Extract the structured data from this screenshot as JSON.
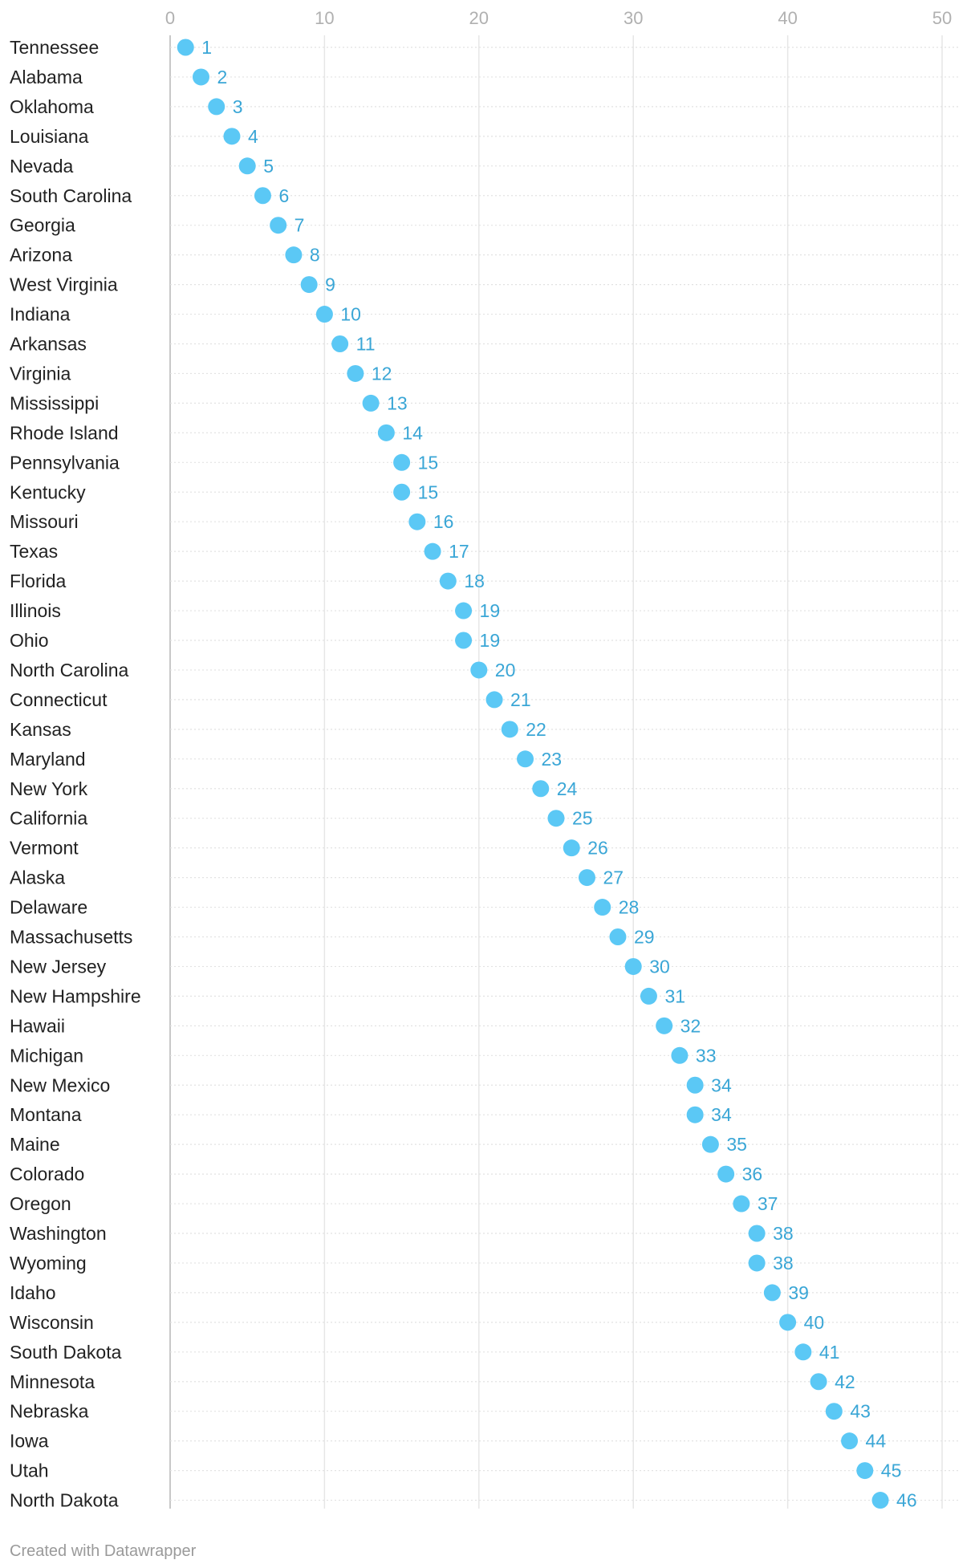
{
  "chart_data": {
    "type": "scatter",
    "orientation": "dot-plot-horizontal",
    "xlim": [
      0,
      50
    ],
    "x_ticks": [
      0,
      10,
      20,
      30,
      40,
      50
    ],
    "x_axis_position": "top",
    "grid": true,
    "dot_color": "#5bc8f5",
    "label_color": "#3aa6d6",
    "categories": [
      "Tennessee",
      "Alabama",
      "Oklahoma",
      "Louisiana",
      "Nevada",
      "South Carolina",
      "Georgia",
      "Arizona",
      "West Virginia",
      "Indiana",
      "Arkansas",
      "Virginia",
      "Mississippi",
      "Rhode Island",
      "Pennsylvania",
      "Kentucky",
      "Missouri",
      "Texas",
      "Florida",
      "Illinois",
      "Ohio",
      "North Carolina",
      "Connecticut",
      "Kansas",
      "Maryland",
      "New York",
      "California",
      "Vermont",
      "Alaska",
      "Delaware",
      "Massachusetts",
      "New Jersey",
      "New Hampshire",
      "Hawaii",
      "Michigan",
      "New Mexico",
      "Montana",
      "Maine",
      "Colorado",
      "Oregon",
      "Washington",
      "Wyoming",
      "Idaho",
      "Wisconsin",
      "South Dakota",
      "Minnesota",
      "Nebraska",
      "Iowa",
      "Utah",
      "North Dakota"
    ],
    "values": [
      1,
      2,
      3,
      4,
      5,
      6,
      7,
      8,
      9,
      10,
      11,
      12,
      13,
      14,
      15,
      15,
      16,
      17,
      18,
      19,
      19,
      20,
      21,
      22,
      23,
      24,
      25,
      26,
      27,
      28,
      29,
      30,
      31,
      32,
      33,
      34,
      34,
      35,
      36,
      37,
      38,
      38,
      39,
      40,
      41,
      42,
      43,
      44,
      45,
      46
    ]
  },
  "footer": {
    "credit": "Created with Datawrapper"
  }
}
